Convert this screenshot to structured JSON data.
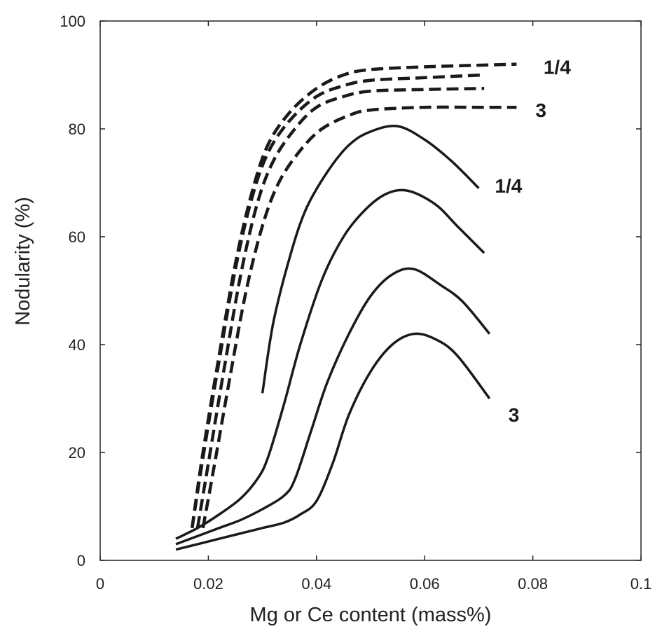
{
  "chart_data": {
    "type": "line",
    "xlabel": "Mg or Ce content (mass%)",
    "ylabel": "Nodularity (%)",
    "xlim": [
      0,
      0.1
    ],
    "ylim": [
      0,
      100
    ],
    "x_ticks": [
      "0",
      "0.02",
      "0.04",
      "0.06",
      "0.08",
      "0.1"
    ],
    "y_ticks": [
      "0",
      "20",
      "40",
      "60",
      "80",
      "100"
    ],
    "grid": false,
    "legend": "none",
    "annotations": [
      {
        "text": "1/4",
        "x": 0.0845,
        "y": 91.5
      },
      {
        "text": "3",
        "x": 0.0815,
        "y": 83.5
      },
      {
        "text": "1/4",
        "x": 0.0755,
        "y": 69.5
      },
      {
        "text": "3",
        "x": 0.0765,
        "y": 27.0
      }
    ],
    "series": [
      {
        "style": "dashed",
        "points": [
          [
            0.017,
            6
          ],
          [
            0.019,
            20
          ],
          [
            0.022,
            38
          ],
          [
            0.025,
            55
          ],
          [
            0.028,
            68
          ],
          [
            0.031,
            77
          ],
          [
            0.035,
            83
          ],
          [
            0.04,
            87.5
          ],
          [
            0.045,
            90
          ],
          [
            0.05,
            91
          ],
          [
            0.06,
            91.5
          ],
          [
            0.07,
            91.8
          ],
          [
            0.077,
            92
          ]
        ]
      },
      {
        "style": "dashed",
        "points": [
          [
            0.017,
            6
          ],
          [
            0.019,
            19
          ],
          [
            0.022,
            37
          ],
          [
            0.025,
            54
          ],
          [
            0.028,
            67
          ],
          [
            0.031,
            75.5
          ],
          [
            0.035,
            81.5
          ],
          [
            0.04,
            86
          ],
          [
            0.045,
            88
          ],
          [
            0.05,
            89
          ],
          [
            0.06,
            89.5
          ],
          [
            0.071,
            90
          ]
        ]
      },
      {
        "style": "dashed",
        "points": [
          [
            0.018,
            6
          ],
          [
            0.02,
            18
          ],
          [
            0.023,
            36
          ],
          [
            0.026,
            53
          ],
          [
            0.029,
            66
          ],
          [
            0.032,
            74
          ],
          [
            0.036,
            80
          ],
          [
            0.04,
            84
          ],
          [
            0.045,
            86
          ],
          [
            0.05,
            87
          ],
          [
            0.06,
            87.3
          ],
          [
            0.071,
            87.5
          ]
        ]
      },
      {
        "style": "dashed",
        "points": [
          [
            0.019,
            6
          ],
          [
            0.021,
            17
          ],
          [
            0.024,
            34
          ],
          [
            0.027,
            50
          ],
          [
            0.03,
            62
          ],
          [
            0.033,
            70
          ],
          [
            0.037,
            76
          ],
          [
            0.041,
            80
          ],
          [
            0.046,
            82.5
          ],
          [
            0.05,
            83.5
          ],
          [
            0.06,
            84
          ],
          [
            0.07,
            84
          ],
          [
            0.077,
            84
          ]
        ]
      },
      {
        "style": "solid",
        "points": [
          [
            0.03,
            31
          ],
          [
            0.032,
            44
          ],
          [
            0.035,
            56
          ],
          [
            0.038,
            65
          ],
          [
            0.042,
            72
          ],
          [
            0.046,
            77
          ],
          [
            0.05,
            79.5
          ],
          [
            0.055,
            80.5
          ],
          [
            0.06,
            78
          ],
          [
            0.065,
            74
          ],
          [
            0.07,
            69
          ]
        ]
      },
      {
        "style": "solid",
        "points": [
          [
            0.014,
            4
          ],
          [
            0.018,
            6
          ],
          [
            0.022,
            8.5
          ],
          [
            0.026,
            11.5
          ],
          [
            0.029,
            15
          ],
          [
            0.031,
            19
          ],
          [
            0.034,
            29
          ],
          [
            0.037,
            40
          ],
          [
            0.041,
            52
          ],
          [
            0.045,
            60
          ],
          [
            0.049,
            65
          ],
          [
            0.053,
            68
          ],
          [
            0.057,
            68.5
          ],
          [
            0.062,
            66
          ],
          [
            0.066,
            62
          ],
          [
            0.071,
            57
          ]
        ]
      },
      {
        "style": "solid",
        "points": [
          [
            0.014,
            3
          ],
          [
            0.018,
            4.5
          ],
          [
            0.022,
            6
          ],
          [
            0.026,
            7.5
          ],
          [
            0.03,
            9.5
          ],
          [
            0.034,
            12
          ],
          [
            0.036,
            15
          ],
          [
            0.039,
            24
          ],
          [
            0.042,
            33
          ],
          [
            0.046,
            42
          ],
          [
            0.05,
            49
          ],
          [
            0.054,
            53
          ],
          [
            0.058,
            54
          ],
          [
            0.063,
            51
          ],
          [
            0.067,
            48
          ],
          [
            0.072,
            42
          ]
        ]
      },
      {
        "style": "solid",
        "points": [
          [
            0.014,
            2
          ],
          [
            0.018,
            3
          ],
          [
            0.022,
            4
          ],
          [
            0.026,
            5
          ],
          [
            0.03,
            6
          ],
          [
            0.034,
            7
          ],
          [
            0.037,
            8.5
          ],
          [
            0.04,
            11
          ],
          [
            0.043,
            18
          ],
          [
            0.046,
            27
          ],
          [
            0.05,
            35
          ],
          [
            0.054,
            40
          ],
          [
            0.058,
            42
          ],
          [
            0.062,
            41
          ],
          [
            0.066,
            38
          ],
          [
            0.072,
            30
          ]
        ]
      }
    ]
  }
}
